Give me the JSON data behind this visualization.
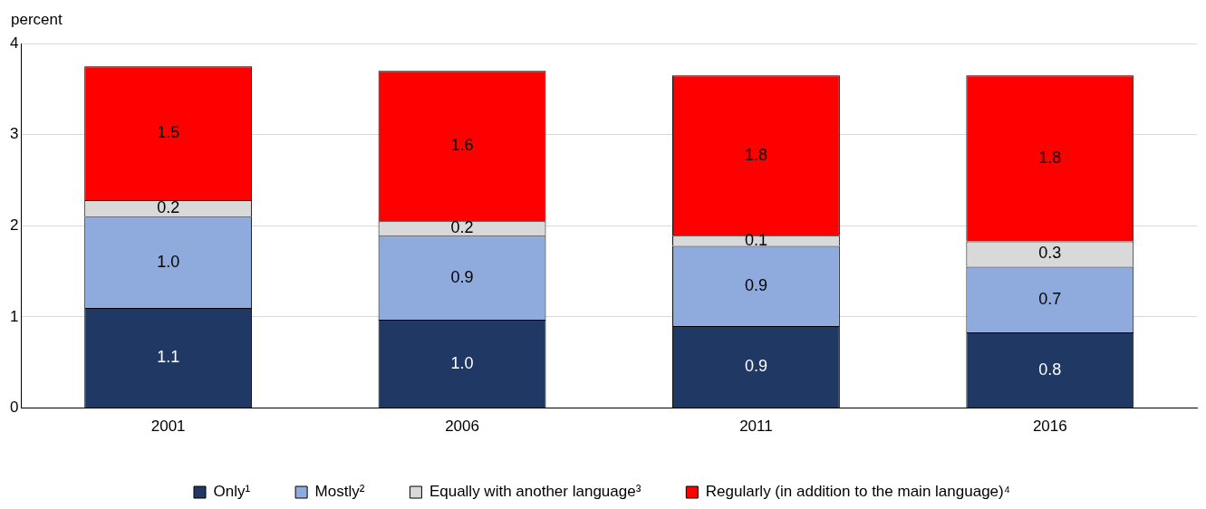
{
  "chart_data": {
    "type": "bar",
    "stacked": true,
    "ylabel": "percent",
    "categories": [
      "2001",
      "2006",
      "2011",
      "2016"
    ],
    "series": [
      {
        "name": "Only¹",
        "color": "#203864",
        "values": [
          1.1,
          0.97,
          0.9,
          0.83
        ],
        "value_labels": [
          "1.1",
          "1.0",
          "0.9",
          "0.8"
        ]
      },
      {
        "name": "Mostly²",
        "color": "#8faadc",
        "values": [
          1.0,
          0.92,
          0.88,
          0.72
        ],
        "value_labels": [
          "1.0",
          "0.9",
          "0.9",
          "0.7"
        ]
      },
      {
        "name": "Equally with another language³",
        "color": "#d9d9d9",
        "values": [
          0.18,
          0.16,
          0.11,
          0.28
        ],
        "value_labels": [
          "0.2",
          "0.2",
          "0.1",
          "0.3"
        ]
      },
      {
        "name": "Regularly (in addition to the main language)⁴",
        "color": "#ff0000",
        "values": [
          1.47,
          1.65,
          1.76,
          1.82
        ],
        "value_labels": [
          "1.5",
          "1.6",
          "1.8",
          "1.8"
        ]
      }
    ],
    "ylim": [
      0,
      4
    ],
    "yticks": [
      0,
      1,
      2,
      3,
      4
    ],
    "grid": "y",
    "legend": "bottom"
  }
}
